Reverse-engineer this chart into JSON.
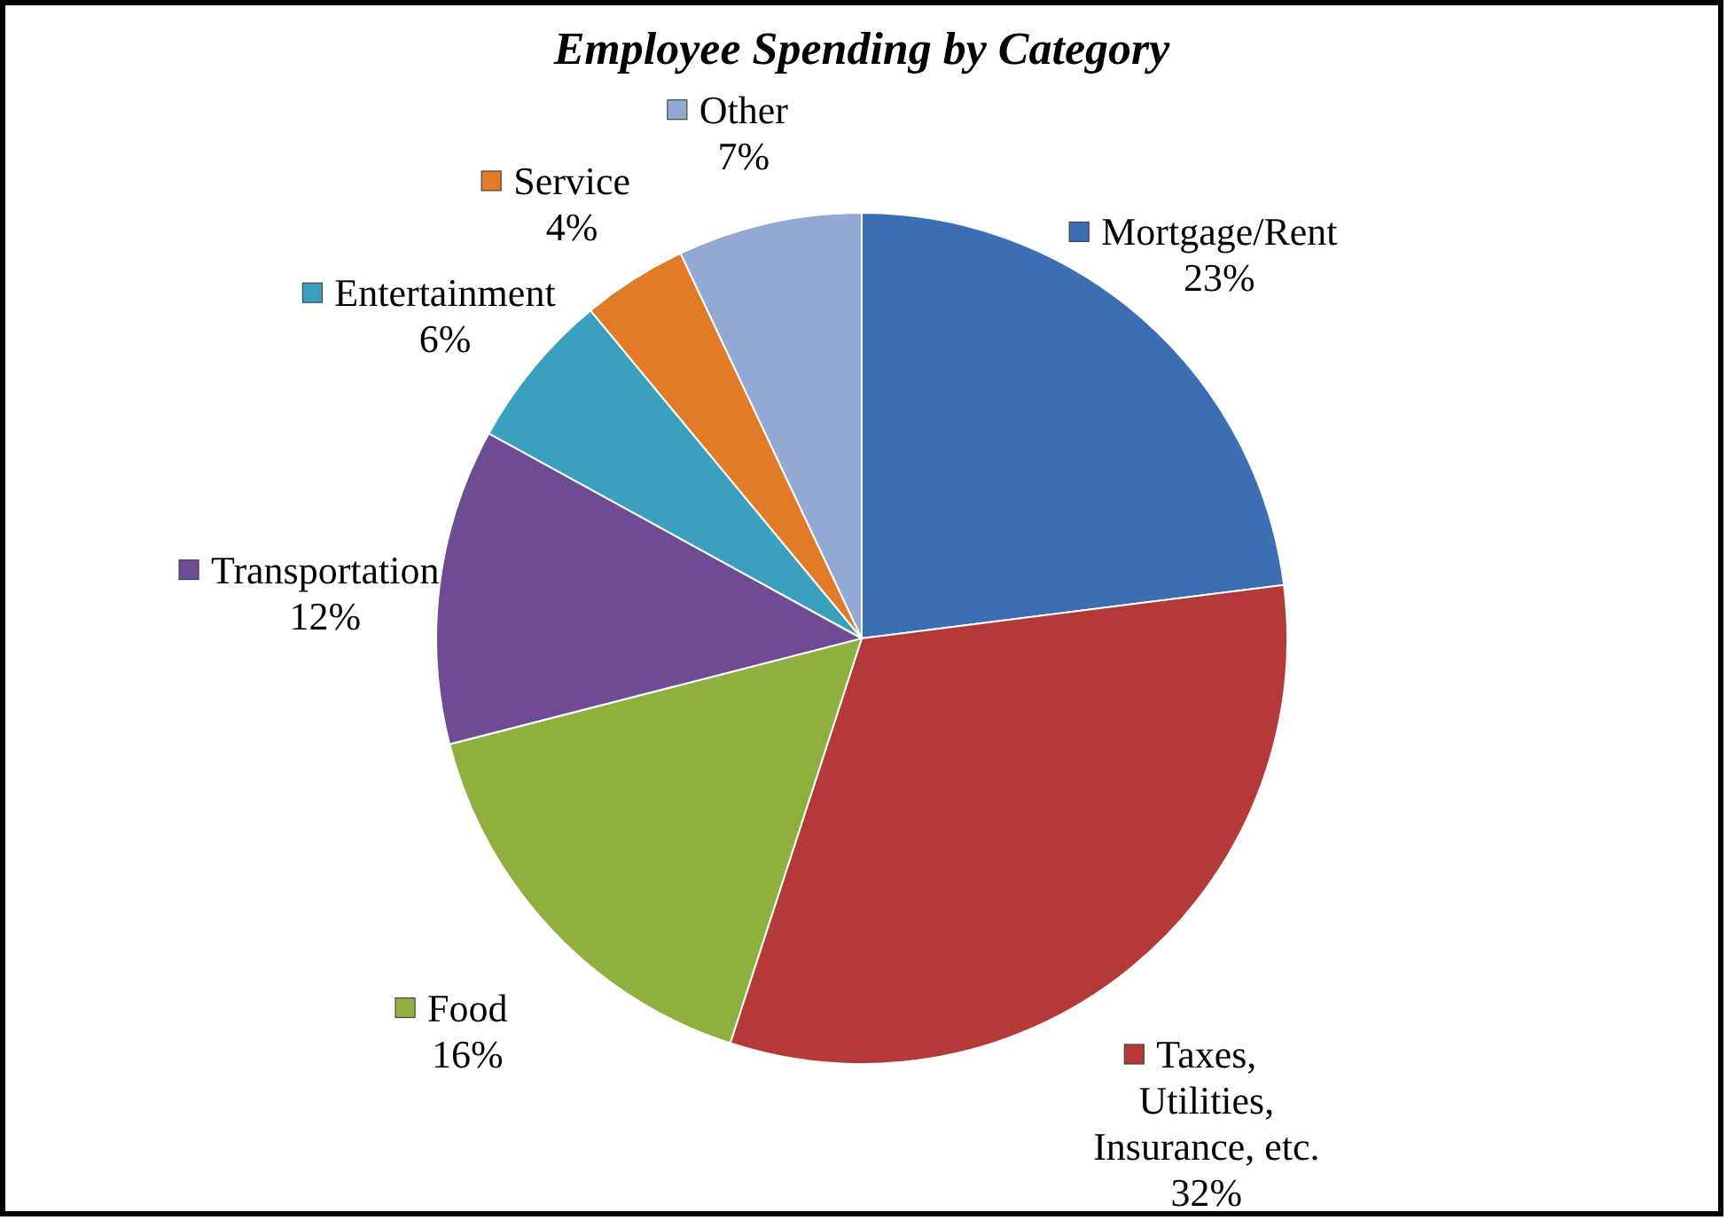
{
  "chart_data": {
    "type": "pie",
    "title": "Employee Spending by Category",
    "categories": [
      "Mortgage/Rent",
      "Taxes, Utilities, Insurance, etc.",
      "Food",
      "Transportation",
      "Entertainment",
      "Service",
      "Other"
    ],
    "values": [
      23,
      32,
      16,
      12,
      6,
      4,
      7
    ],
    "value_labels": [
      "23%",
      "32%",
      "16%",
      "12%",
      "6%",
      "4%",
      "7%"
    ],
    "colors": [
      "#3c6eb4",
      "#b33a37",
      "#8db03e",
      "#6f4b94",
      "#3aa0bd",
      "#e27b27",
      "#93a9d4"
    ],
    "legend": "top left"
  }
}
